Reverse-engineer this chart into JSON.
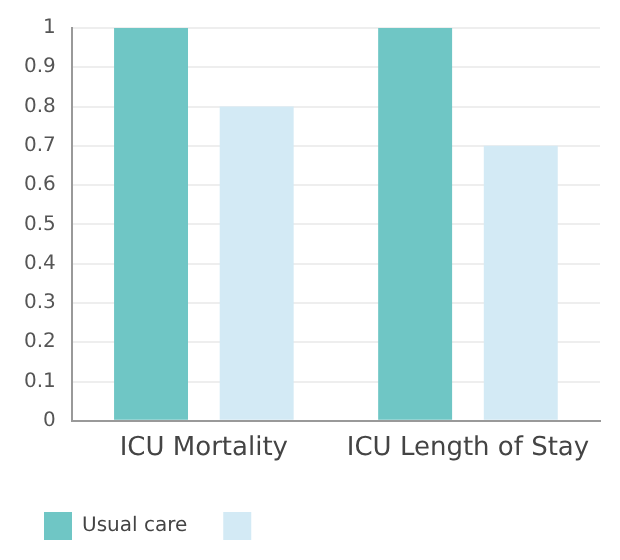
{
  "chart_data": {
    "type": "bar",
    "categories": [
      "ICU Mortality",
      "ICU Length of Stay"
    ],
    "series": [
      {
        "name": "Usual care",
        "color": "#6fc6c5",
        "values": [
          1,
          1
        ]
      },
      {
        "color": "#d3eaf5",
        "values": [
          0.8,
          0.7
        ]
      }
    ],
    "ylim": [
      0,
      1
    ],
    "yticks": [
      0,
      0.1,
      0.2,
      0.3,
      0.4,
      0.5,
      0.6,
      0.7,
      0.8,
      0.9,
      1
    ],
    "grid": "y",
    "legend": "bottom"
  }
}
